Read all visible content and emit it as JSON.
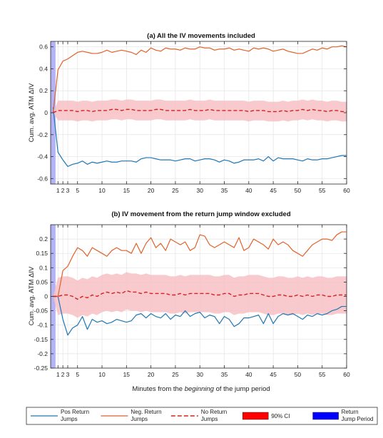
{
  "chart_data": [
    {
      "type": "line",
      "title": "(a) All the IV movements included",
      "ylabel": "Cum. avg. ATM ΔIV",
      "xlabel": "",
      "xlim": [
        -0.5,
        60
      ],
      "ylim": [
        -0.65,
        0.65
      ],
      "xticks": [
        1,
        2,
        3,
        5,
        10,
        15,
        20,
        25,
        30,
        35,
        40,
        45,
        50,
        55,
        60
      ],
      "yticks": [
        -0.6,
        -0.4,
        -0.2,
        0,
        0.2,
        0.4,
        0.6
      ],
      "ytick_labels": [
        "-0.6",
        "-0.4",
        "-0.2",
        "0",
        "0.2",
        "0.4",
        "0.6"
      ],
      "grid": true,
      "jump_period": [
        -0.5,
        0.5
      ],
      "x": [
        0,
        1,
        2,
        3,
        4,
        5,
        6,
        7,
        8,
        9,
        10,
        11,
        12,
        13,
        14,
        15,
        16,
        17,
        18,
        19,
        20,
        21,
        22,
        23,
        24,
        25,
        26,
        27,
        28,
        29,
        30,
        31,
        32,
        33,
        34,
        35,
        36,
        37,
        38,
        39,
        40,
        41,
        42,
        43,
        44,
        45,
        46,
        47,
        48,
        49,
        50,
        51,
        52,
        53,
        54,
        55,
        56,
        57,
        58,
        59,
        60
      ],
      "series": [
        {
          "name": "Pos Return Jumps",
          "color": "#1f77b4",
          "values": [
            0.05,
            -0.36,
            -0.43,
            -0.49,
            -0.47,
            -0.46,
            -0.44,
            -0.47,
            -0.45,
            -0.46,
            -0.45,
            -0.44,
            -0.45,
            -0.45,
            -0.44,
            -0.44,
            -0.44,
            -0.45,
            -0.42,
            -0.41,
            -0.41,
            -0.42,
            -0.43,
            -0.43,
            -0.43,
            -0.44,
            -0.43,
            -0.42,
            -0.42,
            -0.44,
            -0.43,
            -0.42,
            -0.42,
            -0.43,
            -0.45,
            -0.43,
            -0.44,
            -0.46,
            -0.45,
            -0.43,
            -0.43,
            -0.43,
            -0.42,
            -0.44,
            -0.4,
            -0.44,
            -0.41,
            -0.42,
            -0.42,
            -0.42,
            -0.43,
            -0.44,
            -0.42,
            -0.43,
            -0.43,
            -0.42,
            -0.42,
            -0.41,
            -0.4,
            -0.39,
            -0.39
          ]
        },
        {
          "name": "Neg. Return Jumps",
          "color": "#e0622a",
          "values": [
            0.0,
            0.39,
            0.47,
            0.49,
            0.52,
            0.55,
            0.56,
            0.55,
            0.54,
            0.54,
            0.55,
            0.57,
            0.55,
            0.56,
            0.57,
            0.56,
            0.55,
            0.53,
            0.57,
            0.55,
            0.59,
            0.57,
            0.56,
            0.59,
            0.58,
            0.58,
            0.57,
            0.59,
            0.58,
            0.58,
            0.6,
            0.59,
            0.59,
            0.57,
            0.58,
            0.58,
            0.59,
            0.57,
            0.58,
            0.57,
            0.56,
            0.59,
            0.58,
            0.59,
            0.58,
            0.56,
            0.57,
            0.58,
            0.56,
            0.55,
            0.54,
            0.54,
            0.56,
            0.58,
            0.57,
            0.59,
            0.58,
            0.6,
            0.6,
            0.61,
            0.6
          ]
        },
        {
          "name": "No Return Jumps",
          "color": "#d62020",
          "values": [
            0.0,
            0.02,
            0.02,
            0.02,
            0.02,
            0.01,
            0.02,
            0.02,
            0.01,
            0.02,
            0.02,
            0.02,
            0.03,
            0.03,
            0.02,
            0.03,
            0.03,
            0.02,
            0.02,
            0.02,
            0.02,
            0.03,
            0.03,
            0.02,
            0.02,
            0.02,
            0.02,
            0.02,
            0.03,
            0.02,
            0.02,
            0.02,
            0.03,
            0.02,
            0.02,
            0.02,
            0.02,
            0.02,
            0.02,
            0.02,
            0.01,
            0.02,
            0.02,
            0.02,
            0.01,
            0.01,
            0.01,
            0.02,
            0.01,
            0.02,
            0.02,
            0.03,
            0.02,
            0.03,
            0.02,
            0.02,
            0.01,
            0.02,
            0.02,
            0.01,
            0.01
          ]
        }
      ],
      "ci": {
        "name": "90% CI",
        "half_width": 0.09
      }
    },
    {
      "type": "line",
      "title": "(b) IV movement from the return jump window excluded",
      "ylabel": "Cum. avg. ATM ΔIV",
      "xlabel": "Minutes from the beginning of the jump period",
      "xlim": [
        -0.5,
        60
      ],
      "ylim": [
        -0.25,
        0.25
      ],
      "xticks": [
        1,
        2,
        3,
        5,
        10,
        15,
        20,
        25,
        30,
        35,
        40,
        45,
        50,
        55,
        60
      ],
      "yticks": [
        -0.25,
        -0.2,
        -0.15,
        -0.1,
        -0.05,
        0,
        0.05,
        0.1,
        0.15,
        0.2
      ],
      "ytick_labels": [
        "-0.25",
        "-0.2",
        "-0.15",
        "-0.1",
        "-0.05",
        "0",
        "0.05",
        "0.1",
        "0.15",
        "0.2"
      ],
      "grid": true,
      "jump_period": [
        -0.5,
        0.5
      ],
      "x": [
        0,
        1,
        2,
        3,
        4,
        5,
        6,
        7,
        8,
        9,
        10,
        11,
        12,
        13,
        14,
        15,
        16,
        17,
        18,
        19,
        20,
        21,
        22,
        23,
        24,
        25,
        26,
        27,
        28,
        29,
        30,
        31,
        32,
        33,
        34,
        35,
        36,
        37,
        38,
        39,
        40,
        41,
        42,
        43,
        44,
        45,
        46,
        47,
        48,
        49,
        50,
        51,
        52,
        53,
        54,
        55,
        56,
        57,
        58,
        59,
        60
      ],
      "series": [
        {
          "name": "Pos Return Jumps",
          "color": "#1f77b4",
          "values": [
            0.0,
            0.0,
            -0.08,
            -0.135,
            -0.11,
            -0.1,
            -0.07,
            -0.115,
            -0.08,
            -0.09,
            -0.085,
            -0.095,
            -0.09,
            -0.08,
            -0.085,
            -0.09,
            -0.085,
            -0.065,
            -0.06,
            -0.075,
            -0.06,
            -0.07,
            -0.075,
            -0.06,
            -0.08,
            -0.065,
            -0.07,
            -0.05,
            -0.07,
            -0.06,
            -0.055,
            -0.075,
            -0.065,
            -0.07,
            -0.095,
            -0.07,
            -0.08,
            -0.105,
            -0.095,
            -0.075,
            -0.075,
            -0.07,
            -0.065,
            -0.095,
            -0.06,
            -0.095,
            -0.07,
            -0.06,
            -0.065,
            -0.06,
            -0.07,
            -0.08,
            -0.065,
            -0.07,
            -0.06,
            -0.065,
            -0.06,
            -0.05,
            -0.045,
            -0.035,
            -0.035
          ]
        },
        {
          "name": "Neg. Return Jumps",
          "color": "#e0622a",
          "values": [
            0.0,
            0.0,
            0.09,
            0.105,
            0.14,
            0.17,
            0.16,
            0.14,
            0.17,
            0.16,
            0.15,
            0.14,
            0.16,
            0.17,
            0.16,
            0.16,
            0.15,
            0.185,
            0.15,
            0.185,
            0.205,
            0.17,
            0.185,
            0.16,
            0.2,
            0.19,
            0.18,
            0.19,
            0.16,
            0.17,
            0.215,
            0.21,
            0.18,
            0.17,
            0.18,
            0.19,
            0.18,
            0.17,
            0.205,
            0.16,
            0.17,
            0.2,
            0.19,
            0.18,
            0.165,
            0.2,
            0.18,
            0.19,
            0.18,
            0.16,
            0.15,
            0.14,
            0.16,
            0.18,
            0.19,
            0.2,
            0.2,
            0.195,
            0.215,
            0.225,
            0.225
          ]
        },
        {
          "name": "No Return Jumps",
          "color": "#d62020",
          "values": [
            0.0,
            0.0,
            0.005,
            0.005,
            0.0,
            -0.01,
            0.0,
            -0.005,
            0.005,
            0.0,
            0.01,
            0.015,
            0.01,
            0.015,
            0.01,
            0.02,
            0.015,
            0.015,
            0.01,
            0.015,
            0.01,
            0.01,
            0.01,
            0.01,
            0.005,
            0.005,
            0.01,
            0.005,
            0.01,
            0.01,
            0.01,
            0.01,
            0.01,
            0.005,
            0.005,
            0.01,
            0.01,
            0.0,
            0.005,
            0.005,
            0.01,
            0.01,
            0.01,
            0.005,
            0.0,
            0.0,
            0.005,
            0.005,
            0.0,
            0.0,
            0.005,
            0.0,
            0.005,
            0.0,
            0.005,
            0.005,
            0.0,
            0.0,
            0.005,
            0.005,
            0.005
          ]
        }
      ],
      "ci": {
        "name": "90% CI",
        "half_width": 0.065
      }
    }
  ],
  "xlabel_parts": {
    "prefix": "Minutes from the ",
    "emph": "beginning",
    "suffix": " of the jump period"
  },
  "legend": {
    "placement": "bottom",
    "entries": [
      {
        "line1": "Pos Return",
        "line2": "Jumps",
        "color": "#1f77b4",
        "kind": "line"
      },
      {
        "line1": "Neg. Return",
        "line2": "Jumps",
        "color": "#e0622a",
        "kind": "line"
      },
      {
        "line1": "No Return",
        "line2": "Jumps",
        "color": "#d62020",
        "kind": "dash"
      },
      {
        "line1": "90% CI",
        "line2": "",
        "color": "#ff0000",
        "kind": "patch"
      },
      {
        "line1": "Return",
        "line2": "Jump Period",
        "color": "#0000ff",
        "kind": "patch"
      }
    ]
  }
}
